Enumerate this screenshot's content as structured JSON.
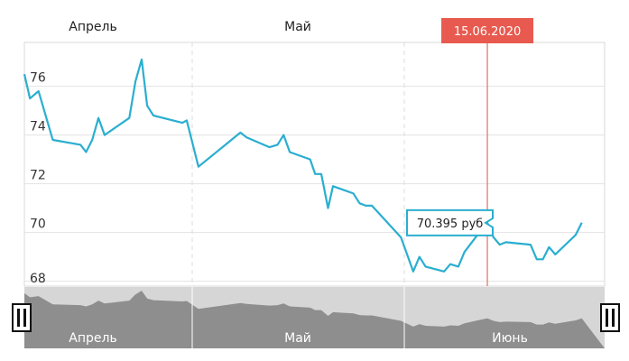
{
  "chart_data": {
    "type": "line",
    "months_top": [
      "Апрель",
      "Май"
    ],
    "navigator_months": [
      "Апрель",
      "Май",
      "Июнь"
    ],
    "y_ticks": [
      68,
      70,
      72,
      74,
      76
    ],
    "ylim": [
      67.8,
      77.8
    ],
    "x_range_days": [
      0,
      94
    ],
    "series": [
      {
        "color": "#2aaed0",
        "points": [
          [
            0,
            76.5
          ],
          [
            0.9,
            75.5
          ],
          [
            2.3,
            75.8
          ],
          [
            4.6,
            73.8
          ],
          [
            9.1,
            73.6
          ],
          [
            10.0,
            73.3
          ],
          [
            11.0,
            73.8
          ],
          [
            12.0,
            74.7
          ],
          [
            13.0,
            74.0
          ],
          [
            17.0,
            74.7
          ],
          [
            18.0,
            76.2
          ],
          [
            19.0,
            77.1
          ],
          [
            19.9,
            75.2
          ],
          [
            20.9,
            74.8
          ],
          [
            25.6,
            74.5
          ],
          [
            26.3,
            74.6
          ],
          [
            28.2,
            72.7
          ],
          [
            35.0,
            74.1
          ],
          [
            36.0,
            73.9
          ],
          [
            39.7,
            73.5
          ],
          [
            41.0,
            73.6
          ],
          [
            42.0,
            74.0
          ],
          [
            43.0,
            73.3
          ],
          [
            46.3,
            73.0
          ],
          [
            47.1,
            72.4
          ],
          [
            48.1,
            72.4
          ],
          [
            49.2,
            71.0
          ],
          [
            50.0,
            71.9
          ],
          [
            53.3,
            71.6
          ],
          [
            54.3,
            71.2
          ],
          [
            55.3,
            71.1
          ],
          [
            56.3,
            71.1
          ],
          [
            61.0,
            69.8
          ],
          [
            63.0,
            68.4
          ],
          [
            64.0,
            69.0
          ],
          [
            65.0,
            68.6
          ],
          [
            68.0,
            68.4
          ],
          [
            69.0,
            68.7
          ],
          [
            70.3,
            68.6
          ],
          [
            71.3,
            69.2
          ],
          [
            74.0,
            70.1
          ],
          [
            75.0,
            70.4
          ],
          [
            76.0,
            69.8
          ],
          [
            77.0,
            69.5
          ],
          [
            78.0,
            69.6
          ],
          [
            82.0,
            69.5
          ],
          [
            83.0,
            68.9
          ],
          [
            84.0,
            68.9
          ],
          [
            85.0,
            69.4
          ],
          [
            86.0,
            69.1
          ],
          [
            89.3,
            69.9
          ],
          [
            90.3,
            70.4
          ]
        ]
      }
    ],
    "crosshair": {
      "x": 75.0,
      "date": "15.06.2020"
    },
    "tooltip": {
      "text": "70.395 руб",
      "y": 70.395
    },
    "colors": {
      "line": "#2aaed0",
      "flag": "#e85a4f",
      "crosshair": "#e07060",
      "navigator_bg": "#d6d6d6",
      "navigator_area": "#8e8e8e"
    }
  }
}
